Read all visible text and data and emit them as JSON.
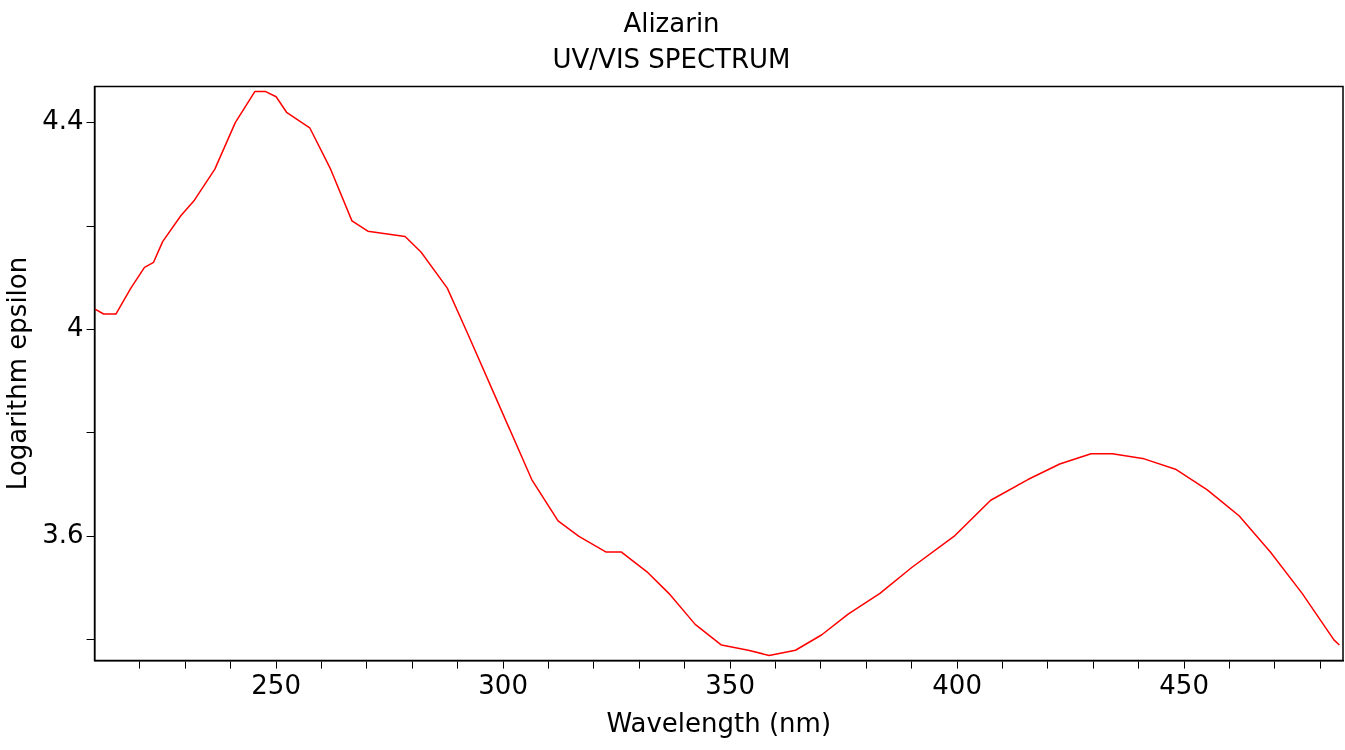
{
  "chart_data": {
    "type": "line",
    "title": "Alizarin",
    "subtitle": "UV/VIS SPECTRUM",
    "xlabel": "Wavelength (nm)",
    "ylabel": "Logarithm epsilon",
    "xlim": [
      210,
      485
    ],
    "ylim": [
      3.36,
      4.47
    ],
    "xticks": [
      {
        "value": 220,
        "label": null
      },
      {
        "value": 230,
        "label": null
      },
      {
        "value": 240,
        "label": null
      },
      250,
      {
        "value": 260,
        "label": null
      },
      {
        "value": 270,
        "label": null
      },
      {
        "value": 280,
        "label": null
      },
      {
        "value": 290,
        "label": null
      },
      300,
      {
        "value": 310,
        "label": null
      },
      {
        "value": 320,
        "label": null
      },
      {
        "value": 330,
        "label": null
      },
      {
        "value": 340,
        "label": null
      },
      350,
      {
        "value": 360,
        "label": null
      },
      {
        "value": 370,
        "label": null
      },
      {
        "value": 380,
        "label": null
      },
      {
        "value": 390,
        "label": null
      },
      400,
      {
        "value": 410,
        "label": null
      },
      {
        "value": 420,
        "label": null
      },
      {
        "value": 430,
        "label": null
      },
      {
        "value": 440,
        "label": null
      },
      450,
      {
        "value": 460,
        "label": null
      },
      {
        "value": 470,
        "label": null
      },
      {
        "value": 480,
        "label": null
      }
    ],
    "yticks": [
      {
        "value": 3.4,
        "label": null
      },
      3.6,
      {
        "value": 3.8,
        "label": null
      },
      4,
      {
        "value": 4.2,
        "label": null
      },
      4.4
    ],
    "grid": false,
    "legend": false,
    "marker": "none",
    "line_style": "solid",
    "series": [
      {
        "color": "#ff0000",
        "x": [
          210,
          212,
          214.7,
          218,
          221,
          223,
          225,
          229,
          232,
          236.5,
          241,
          245.3,
          247.7,
          250,
          252.3,
          257.4,
          262,
          266.7,
          270.2,
          278.4,
          281.9,
          287.7,
          292.3,
          299.3,
          306.3,
          312.1,
          316.7,
          322.6,
          326,
          331.9,
          336.5,
          342.3,
          348.1,
          354,
          358.6,
          364.4,
          370.2,
          376,
          383,
          390,
          399.3,
          407.4,
          415.6,
          422.6,
          429.5,
          434.2,
          441.2,
          448.1,
          455.1,
          462.1,
          469,
          476,
          483,
          484.2
        ],
        "values": [
          4.04,
          4.03,
          4.03,
          4.08,
          4.12,
          4.13,
          4.17,
          4.22,
          4.25,
          4.31,
          4.4,
          4.46,
          4.46,
          4.45,
          4.42,
          4.39,
          4.31,
          4.21,
          4.19,
          4.18,
          4.15,
          4.08,
          3.99,
          3.85,
          3.71,
          3.63,
          3.6,
          3.57,
          3.57,
          3.53,
          3.49,
          3.43,
          3.39,
          3.38,
          3.37,
          3.38,
          3.41,
          3.45,
          3.49,
          3.54,
          3.6,
          3.67,
          3.71,
          3.74,
          3.76,
          3.76,
          3.75,
          3.73,
          3.69,
          3.64,
          3.57,
          3.49,
          3.4,
          3.39
        ]
      }
    ]
  }
}
